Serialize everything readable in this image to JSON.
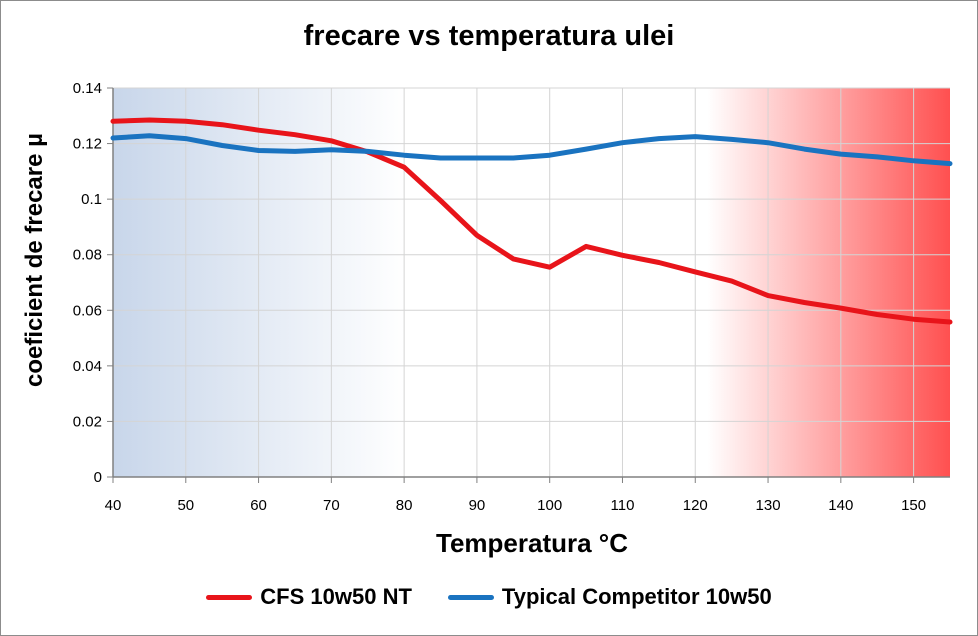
{
  "chart_data": {
    "type": "line",
    "title": "frecare vs temperatura ulei",
    "xlabel": "Temperatura °C",
    "ylabel": "coeficient de frecare µ",
    "xlim": [
      40,
      155
    ],
    "ylim": [
      0,
      0.14
    ],
    "x_ticks": [
      "40",
      "50",
      "60",
      "70",
      "80",
      "90",
      "100",
      "110",
      "120",
      "130",
      "140",
      "150"
    ],
    "y_ticks": [
      "0",
      "0.02",
      "0.04",
      "0.06",
      "0.08",
      "0.1",
      "0.12",
      "0.14"
    ],
    "grid": true,
    "legend_position": "bottom",
    "x": [
      40,
      45,
      50,
      55,
      60,
      65,
      70,
      75,
      80,
      85,
      90,
      95,
      100,
      105,
      110,
      115,
      120,
      125,
      130,
      135,
      140,
      145,
      150,
      155
    ],
    "series": [
      {
        "name": "CFS 10w50 NT",
        "color": "#e8141a",
        "values": [
          0.128,
          0.1285,
          0.128,
          0.1268,
          0.1248,
          0.1232,
          0.121,
          0.117,
          0.1115,
          0.0995,
          0.087,
          0.0785,
          0.0755,
          0.083,
          0.0798,
          0.0772,
          0.0738,
          0.0705,
          0.0653,
          0.0628,
          0.0608,
          0.0585,
          0.0568,
          0.0558
        ]
      },
      {
        "name": "Typical Competitor 10w50",
        "color": "#1a73c0",
        "values": [
          0.122,
          0.1228,
          0.1218,
          0.1193,
          0.1175,
          0.1172,
          0.1178,
          0.1172,
          0.1158,
          0.1148,
          0.1148,
          0.1148,
          0.1158,
          0.118,
          0.1203,
          0.1218,
          0.1225,
          0.1215,
          0.1203,
          0.118,
          0.1162,
          0.1152,
          0.1138,
          0.1128
        ]
      }
    ]
  }
}
